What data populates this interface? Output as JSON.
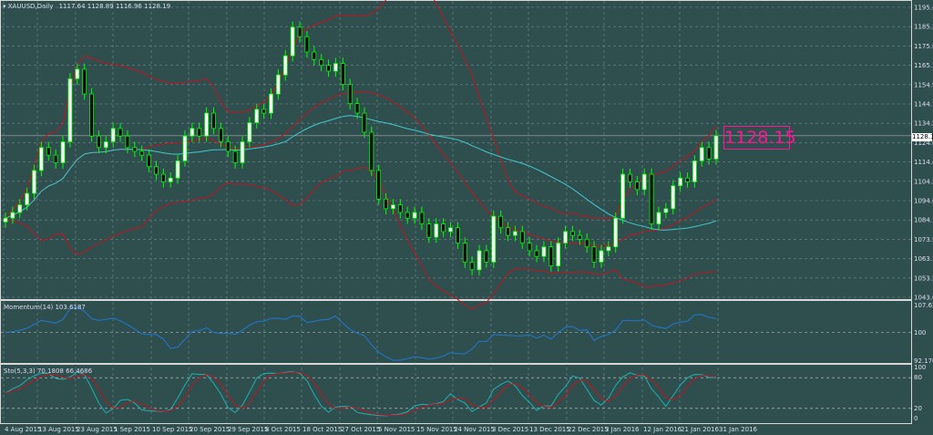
{
  "header": {
    "symbol_timeframe": "XAUUSD,Daily",
    "ohlc": "1117.64 1128.89 1116.96 1128.19"
  },
  "current_price_box": "1128.15",
  "current_price_axis": "1128.19",
  "momentum": {
    "label": "Momentum(14) 103.6187",
    "axis": [
      "107.6374",
      "100",
      "92.1706"
    ]
  },
  "stochastic": {
    "label": "Sto(5,3,3) 70.1808 66.4686",
    "axis": [
      "100",
      "80",
      "20",
      "0"
    ]
  },
  "price_axis": [
    "1195.40",
    "1185.20",
    "1175.00",
    "1165.10",
    "1154.90",
    "1144.70",
    "1134.50",
    "1124.60",
    "1114.40",
    "1104.20",
    "1094.00",
    "1084.10",
    "1073.90",
    "1063.70",
    "1053.50",
    "1043.60"
  ],
  "date_axis": [
    "4 Aug 2015",
    "13 Aug 2015",
    "23 Aug 2015",
    "1 Sep 2015",
    "10 Sep 2015",
    "20 Sep 2015",
    "29 Sep 2015",
    "8 Oct 2015",
    "18 Oct 2015",
    "27 Oct 2015",
    "5 Nov 2015",
    "15 Nov 2015",
    "24 Nov 2015",
    "3 Dec 2015",
    "13 Dec 2015",
    "22 Dec 2015",
    "3 Jan 2016",
    "12 Jan 2016",
    "21 Jan 2016",
    "31 Jan 2016"
  ],
  "colors": {
    "background": "#2f4f4f",
    "bull_body": "#ffffff",
    "bear_body": "#000000",
    "candle_outline": "#00ff00",
    "bollinger": "#c0141e",
    "moving_average": "#40c8d0",
    "momentum": "#1e78d2",
    "stoch_main": "#20b0b0",
    "stoch_signal": "#c0141e",
    "price_box": "#ff1493"
  },
  "chart_data": {
    "type": "candlestick",
    "symbol": "XAUUSD",
    "timeframe": "Daily",
    "ylim": [
      1043.6,
      1195.4
    ],
    "x_range": [
      "4 Aug 2015",
      "31 Jan 2016"
    ],
    "grid": true,
    "indicators": [
      "Bollinger Bands",
      "Moving Average",
      "Momentum(14)",
      "Sto(5,3,3)"
    ],
    "closes": [
      1085,
      1088,
      1092,
      1098,
      1110,
      1122,
      1118,
      1114,
      1125,
      1158,
      1163,
      1150,
      1128,
      1122,
      1125,
      1132,
      1128,
      1122,
      1120,
      1118,
      1112,
      1108,
      1104,
      1106,
      1115,
      1128,
      1132,
      1128,
      1140,
      1132,
      1125,
      1120,
      1114,
      1125,
      1135,
      1142,
      1140,
      1150,
      1160,
      1170,
      1185,
      1180,
      1172,
      1168,
      1165,
      1162,
      1166,
      1155,
      1145,
      1140,
      1130,
      1110,
      1095,
      1090,
      1092,
      1088,
      1085,
      1088,
      1082,
      1075,
      1082,
      1078,
      1080,
      1072,
      1062,
      1058,
      1068,
      1062,
      1086,
      1080,
      1076,
      1078,
      1072,
      1068,
      1065,
      1070,
      1060,
      1072,
      1078,
      1076,
      1074,
      1070,
      1062,
      1068,
      1070,
      1085,
      1108,
      1104,
      1100,
      1108,
      1082,
      1088,
      1090,
      1102,
      1106,
      1104,
      1115,
      1122,
      1116,
      1128.19
    ]
  }
}
